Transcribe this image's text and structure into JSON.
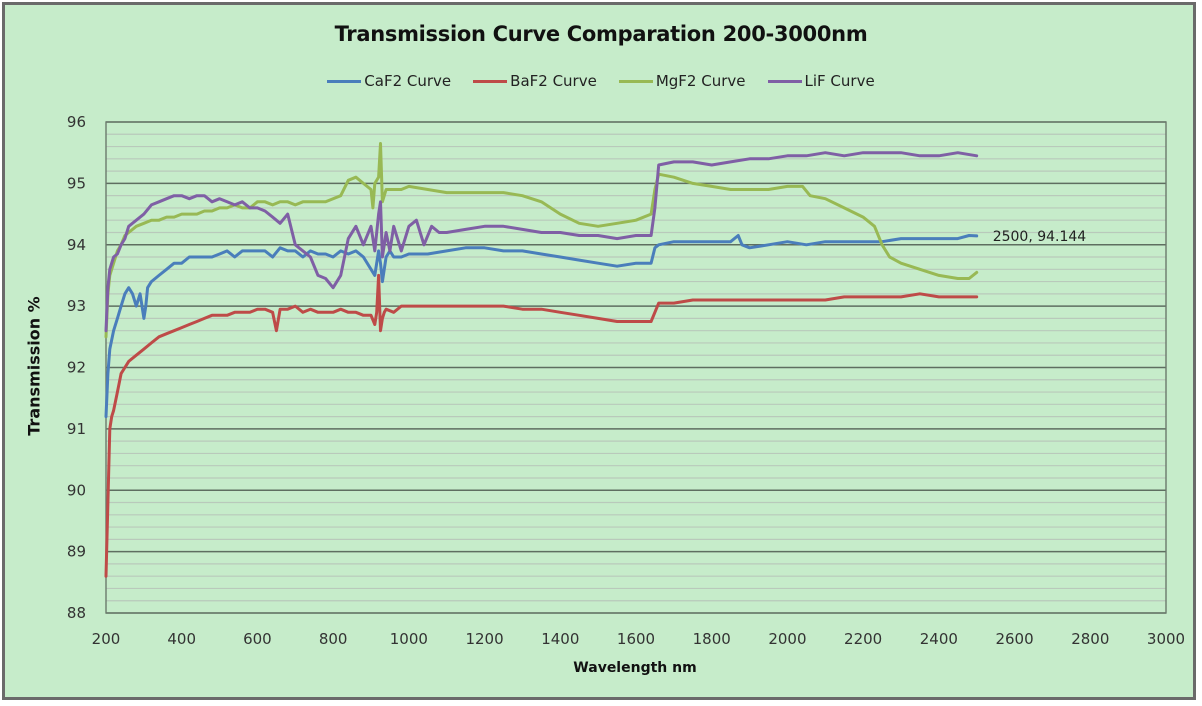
{
  "chart_data": {
    "type": "line",
    "title": "Transmission Curve Comparation 200-3000nm",
    "xlabel": "Wavelength nm",
    "ylabel": "Transmission %",
    "xlim": [
      200,
      3000
    ],
    "ylim": [
      88,
      96
    ],
    "xticks": [
      200,
      400,
      600,
      800,
      1000,
      1200,
      1400,
      1600,
      1800,
      2000,
      2200,
      2400,
      2600,
      2800,
      3000
    ],
    "yticks": [
      88,
      89,
      90,
      91,
      92,
      93,
      94,
      95,
      96
    ],
    "minor_y_step": 0.2,
    "grid": true,
    "legend_position": "top",
    "annotation": {
      "text": "2500, 94.144",
      "x": 2500,
      "y": 94.144
    },
    "series": [
      {
        "name": "CaF2 Curve",
        "color": "#4a7ebb",
        "x": [
          200,
          205,
          210,
          220,
          230,
          240,
          250,
          260,
          270,
          280,
          290,
          300,
          305,
          310,
          320,
          340,
          360,
          380,
          400,
          420,
          440,
          460,
          480,
          500,
          520,
          540,
          560,
          580,
          600,
          620,
          640,
          660,
          680,
          700,
          720,
          740,
          760,
          780,
          800,
          820,
          840,
          860,
          880,
          900,
          910,
          920,
          925,
          930,
          940,
          950,
          960,
          980,
          1000,
          1050,
          1100,
          1150,
          1200,
          1250,
          1300,
          1350,
          1400,
          1450,
          1500,
          1550,
          1600,
          1640,
          1650,
          1660,
          1700,
          1750,
          1800,
          1850,
          1870,
          1880,
          1900,
          1950,
          2000,
          2050,
          2100,
          2150,
          2200,
          2250,
          2300,
          2350,
          2400,
          2450,
          2480,
          2500
        ],
        "values": [
          91.2,
          91.9,
          92.3,
          92.6,
          92.8,
          93.0,
          93.2,
          93.3,
          93.2,
          93.0,
          93.2,
          92.8,
          93.0,
          93.3,
          93.4,
          93.5,
          93.6,
          93.7,
          93.7,
          93.8,
          93.8,
          93.8,
          93.8,
          93.85,
          93.9,
          93.8,
          93.9,
          93.9,
          93.9,
          93.9,
          93.8,
          93.95,
          93.9,
          93.9,
          93.8,
          93.9,
          93.85,
          93.85,
          93.8,
          93.9,
          93.85,
          93.9,
          93.8,
          93.6,
          93.5,
          93.9,
          93.7,
          93.4,
          93.8,
          93.9,
          93.8,
          93.8,
          93.85,
          93.85,
          93.9,
          93.95,
          93.95,
          93.9,
          93.9,
          93.85,
          93.8,
          93.75,
          93.7,
          93.65,
          93.7,
          93.7,
          93.95,
          94.0,
          94.05,
          94.05,
          94.05,
          94.05,
          94.15,
          94.0,
          93.95,
          94.0,
          94.05,
          94.0,
          94.05,
          94.05,
          94.05,
          94.05,
          94.1,
          94.1,
          94.1,
          94.1,
          94.15,
          94.144
        ]
      },
      {
        "name": "BaF2 Curve",
        "color": "#be4b48",
        "x": [
          200,
          205,
          210,
          215,
          220,
          230,
          240,
          250,
          260,
          280,
          300,
          320,
          340,
          360,
          380,
          400,
          420,
          440,
          460,
          480,
          500,
          520,
          540,
          560,
          580,
          600,
          620,
          640,
          650,
          660,
          680,
          700,
          720,
          740,
          760,
          780,
          800,
          820,
          840,
          860,
          880,
          900,
          910,
          915,
          920,
          925,
          930,
          935,
          940,
          960,
          980,
          1000,
          1050,
          1100,
          1150,
          1200,
          1250,
          1300,
          1350,
          1400,
          1450,
          1500,
          1550,
          1600,
          1640,
          1650,
          1660,
          1700,
          1750,
          1800,
          1850,
          1900,
          1950,
          2000,
          2050,
          2100,
          2150,
          2200,
          2250,
          2300,
          2350,
          2400,
          2450,
          2500
        ],
        "values": [
          88.6,
          89.8,
          91.0,
          91.2,
          91.3,
          91.6,
          91.9,
          92.0,
          92.1,
          92.2,
          92.3,
          92.4,
          92.5,
          92.55,
          92.6,
          92.65,
          92.7,
          92.75,
          92.8,
          92.85,
          92.85,
          92.85,
          92.9,
          92.9,
          92.9,
          92.95,
          92.95,
          92.9,
          92.6,
          92.95,
          92.95,
          93.0,
          92.9,
          92.95,
          92.9,
          92.9,
          92.9,
          92.95,
          92.9,
          92.9,
          92.85,
          92.85,
          92.7,
          92.9,
          93.5,
          92.6,
          92.8,
          92.9,
          92.95,
          92.9,
          93.0,
          93.0,
          93.0,
          93.0,
          93.0,
          93.0,
          93.0,
          92.95,
          92.95,
          92.9,
          92.85,
          92.8,
          92.75,
          92.75,
          92.75,
          92.9,
          93.05,
          93.05,
          93.1,
          93.1,
          93.1,
          93.1,
          93.1,
          93.1,
          93.1,
          93.1,
          93.15,
          93.15,
          93.15,
          93.15,
          93.2,
          93.15,
          93.15,
          93.15
        ]
      },
      {
        "name": "MgF2 Curve",
        "color": "#98b954",
        "x": [
          200,
          205,
          210,
          220,
          230,
          240,
          250,
          260,
          280,
          300,
          320,
          340,
          360,
          380,
          400,
          420,
          440,
          460,
          480,
          500,
          520,
          540,
          560,
          580,
          600,
          620,
          640,
          660,
          680,
          700,
          720,
          740,
          760,
          780,
          800,
          820,
          840,
          860,
          880,
          900,
          905,
          910,
          920,
          925,
          930,
          940,
          950,
          960,
          980,
          1000,
          1050,
          1100,
          1150,
          1200,
          1250,
          1300,
          1350,
          1400,
          1450,
          1500,
          1550,
          1600,
          1640,
          1650,
          1660,
          1700,
          1750,
          1800,
          1850,
          1900,
          1950,
          2000,
          2040,
          2060,
          2100,
          2150,
          2200,
          2230,
          2250,
          2270,
          2300,
          2350,
          2400,
          2450,
          2480,
          2500
        ],
        "values": [
          92.5,
          93.2,
          93.5,
          93.7,
          93.9,
          94.0,
          94.15,
          94.2,
          94.3,
          94.35,
          94.4,
          94.4,
          94.45,
          94.45,
          94.5,
          94.5,
          94.5,
          94.55,
          94.55,
          94.6,
          94.6,
          94.65,
          94.6,
          94.6,
          94.7,
          94.7,
          94.65,
          94.7,
          94.7,
          94.65,
          94.7,
          94.7,
          94.7,
          94.7,
          94.75,
          94.8,
          95.05,
          95.1,
          95.0,
          94.9,
          94.6,
          95.0,
          95.1,
          95.65,
          94.7,
          94.9,
          94.9,
          94.9,
          94.9,
          94.95,
          94.9,
          94.85,
          94.85,
          94.85,
          94.85,
          94.8,
          94.7,
          94.5,
          94.35,
          94.3,
          94.35,
          94.4,
          94.5,
          94.9,
          95.15,
          95.1,
          95.0,
          94.95,
          94.9,
          94.9,
          94.9,
          94.95,
          94.95,
          94.8,
          94.75,
          94.6,
          94.45,
          94.3,
          94.0,
          93.8,
          93.7,
          93.6,
          93.5,
          93.45,
          93.45,
          93.55
        ]
      },
      {
        "name": "LiF Curve",
        "color": "#7f5fa5",
        "x": [
          200,
          205,
          210,
          220,
          230,
          240,
          250,
          260,
          280,
          300,
          320,
          340,
          360,
          380,
          400,
          420,
          440,
          460,
          480,
          500,
          520,
          540,
          560,
          580,
          600,
          620,
          640,
          660,
          680,
          700,
          720,
          740,
          760,
          780,
          800,
          820,
          840,
          860,
          880,
          900,
          910,
          920,
          925,
          930,
          940,
          950,
          960,
          980,
          1000,
          1020,
          1040,
          1060,
          1080,
          1100,
          1150,
          1200,
          1250,
          1300,
          1350,
          1400,
          1450,
          1500,
          1550,
          1600,
          1640,
          1650,
          1660,
          1700,
          1750,
          1800,
          1850,
          1900,
          1950,
          2000,
          2050,
          2100,
          2150,
          2200,
          2250,
          2300,
          2350,
          2400,
          2450,
          2500
        ],
        "values": [
          92.6,
          93.3,
          93.6,
          93.8,
          93.85,
          94.0,
          94.1,
          94.3,
          94.4,
          94.5,
          94.65,
          94.7,
          94.75,
          94.8,
          94.8,
          94.75,
          94.8,
          94.8,
          94.7,
          94.75,
          94.7,
          94.65,
          94.7,
          94.6,
          94.6,
          94.55,
          94.45,
          94.35,
          94.5,
          94.0,
          93.9,
          93.8,
          93.5,
          93.45,
          93.3,
          93.5,
          94.1,
          94.3,
          94.0,
          94.3,
          93.9,
          94.5,
          94.7,
          93.8,
          94.2,
          93.9,
          94.3,
          93.9,
          94.3,
          94.4,
          94.0,
          94.3,
          94.2,
          94.2,
          94.25,
          94.3,
          94.3,
          94.25,
          94.2,
          94.2,
          94.15,
          94.15,
          94.1,
          94.15,
          94.15,
          94.6,
          95.3,
          95.35,
          95.35,
          95.3,
          95.35,
          95.4,
          95.4,
          95.45,
          95.45,
          95.5,
          95.45,
          95.5,
          95.5,
          95.5,
          95.45,
          95.45,
          95.5,
          95.45
        ]
      }
    ]
  }
}
